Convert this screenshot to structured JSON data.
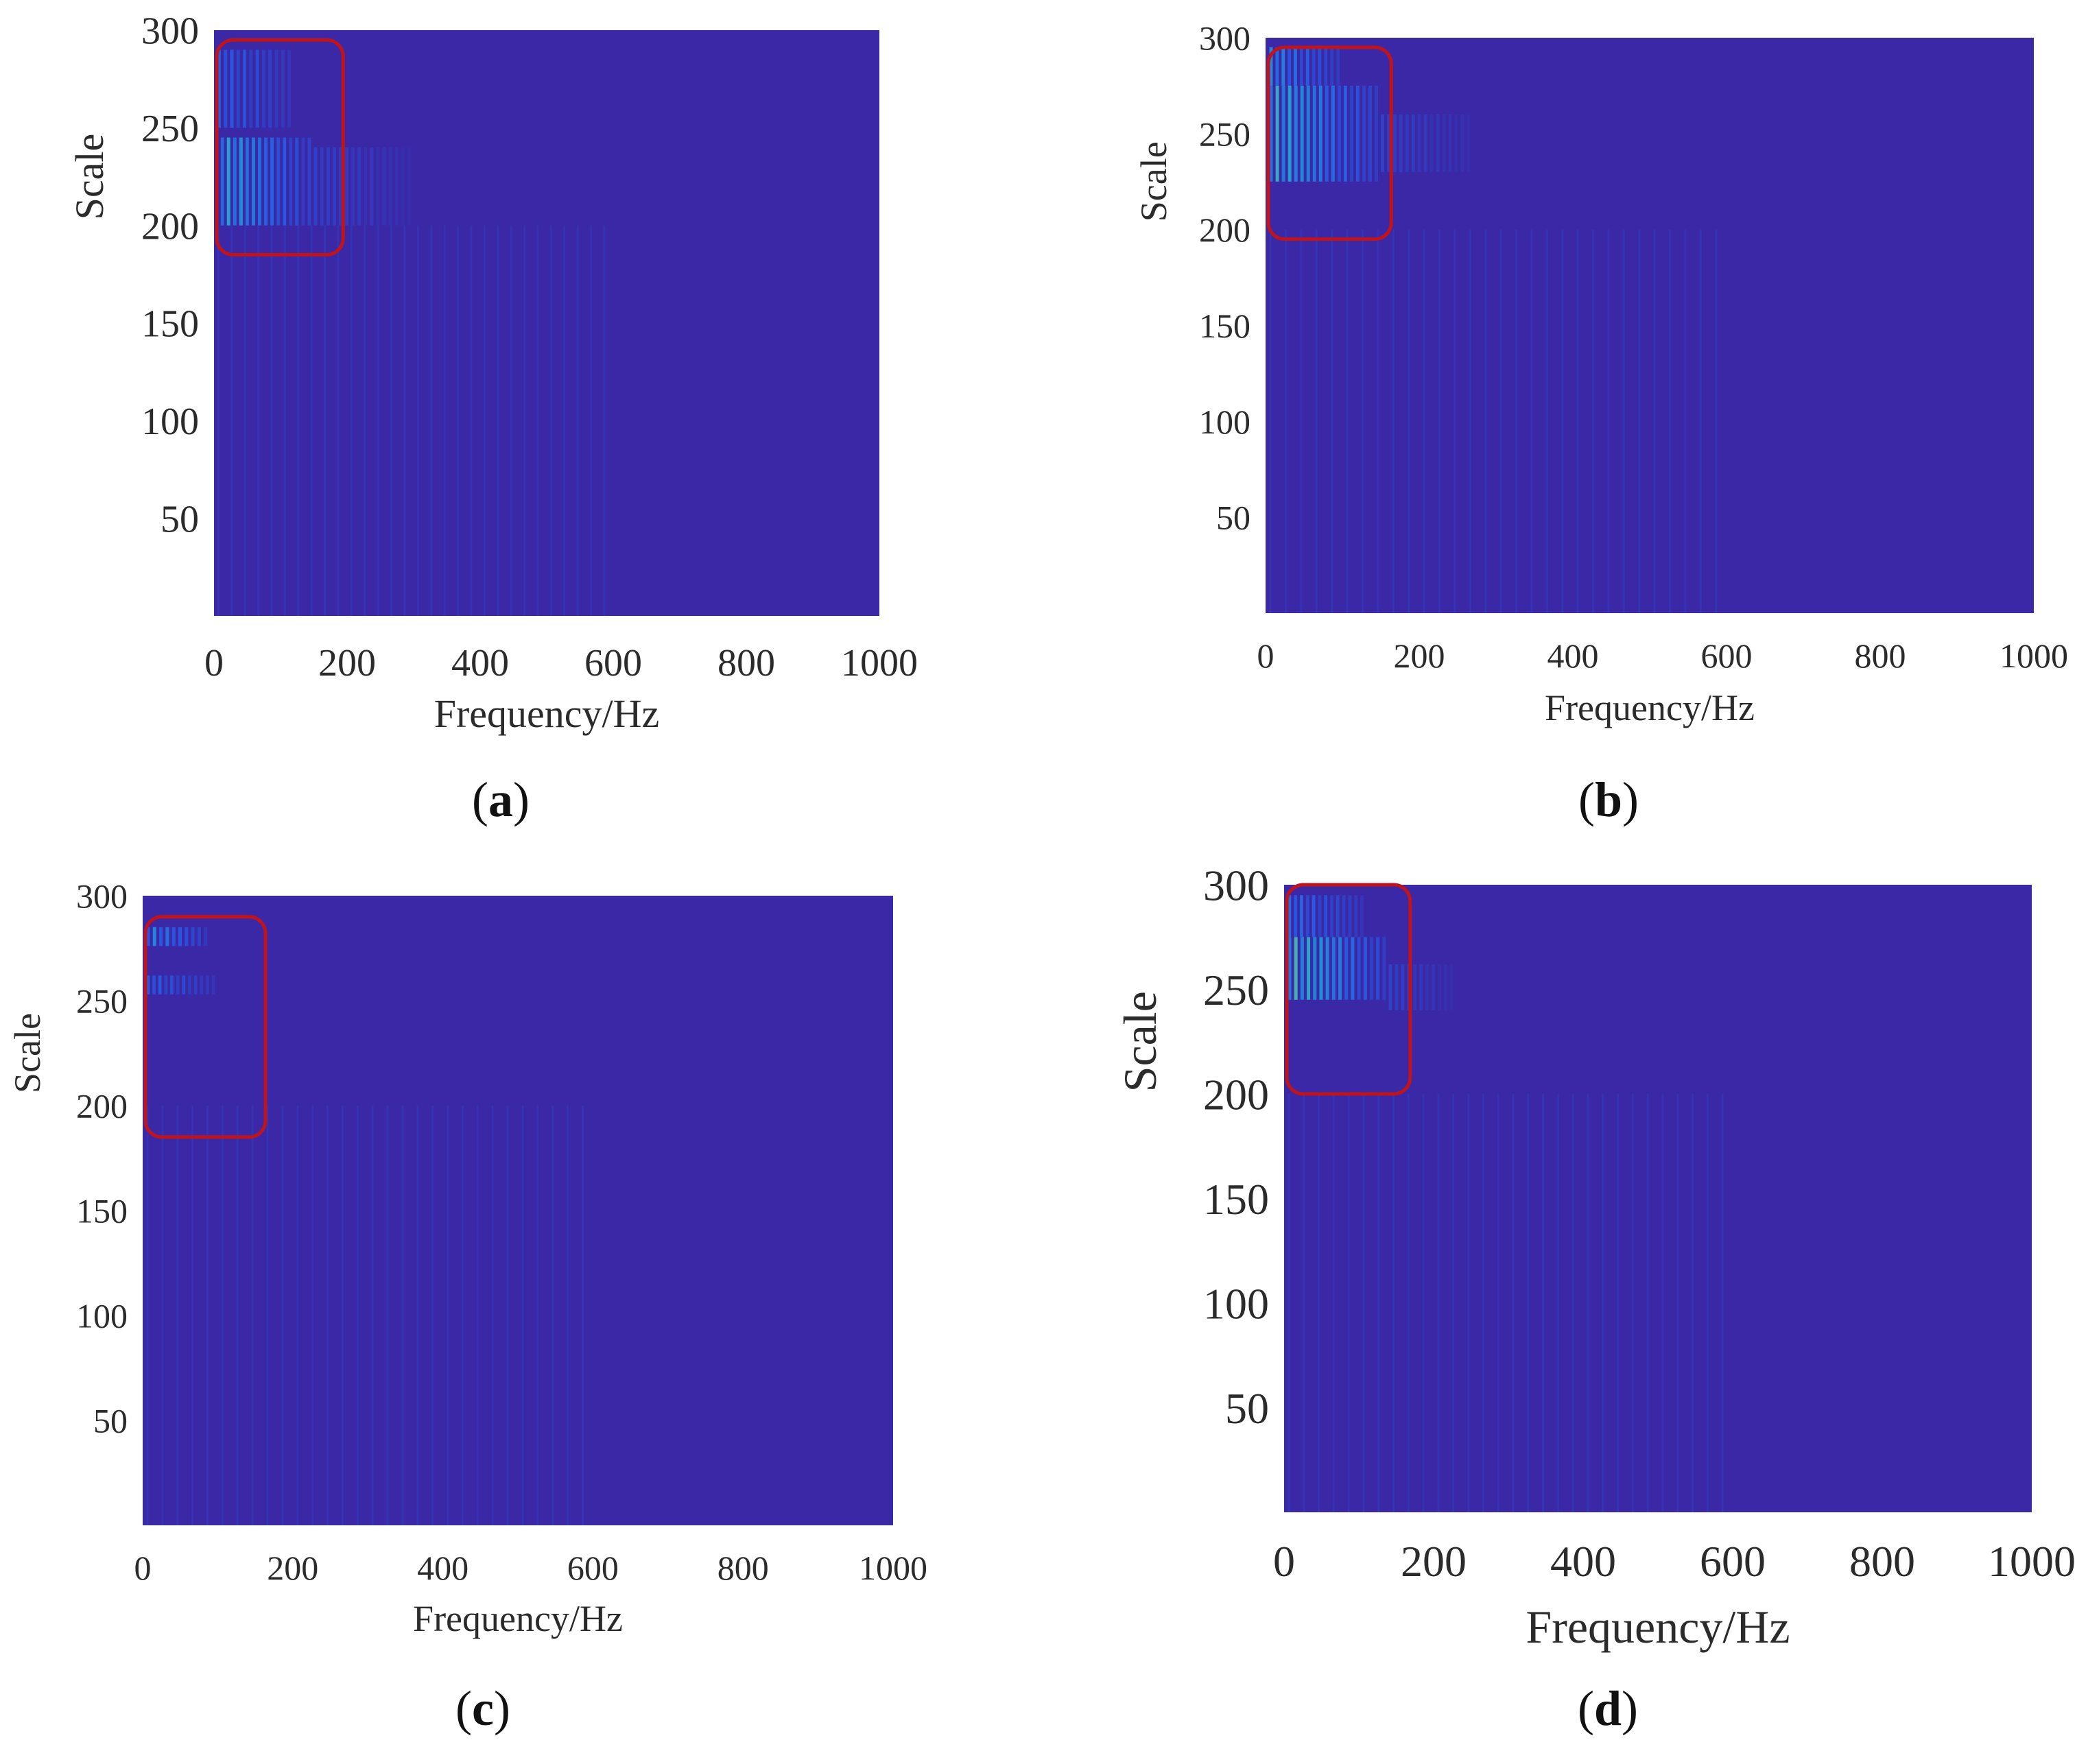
{
  "chart_data": [
    {
      "type": "heatmap",
      "panel_label": "a",
      "xlabel": "Frequency/Hz",
      "ylabel": "Scale",
      "x_ticks": [
        "0",
        "200",
        "400",
        "600",
        "800",
        "1000"
      ],
      "y_ticks": [
        "50",
        "100",
        "150",
        "200",
        "250",
        "300"
      ],
      "xlim": [
        0,
        1000
      ],
      "ylim": [
        0,
        300
      ],
      "background_color": "#3A28A6",
      "highlight_box": {
        "x": [
          0,
          190
        ],
        "y": [
          185,
          295
        ],
        "color": "#C0141C"
      },
      "hotspots": [
        {
          "x": [
            10,
            150
          ],
          "y": [
            200,
            245
          ],
          "level": 0.55
        },
        {
          "x": [
            5,
            120
          ],
          "y": [
            250,
            290
          ],
          "level": 0.3
        },
        {
          "x": [
            150,
            300
          ],
          "y": [
            200,
            240
          ],
          "level": 0.15
        }
      ]
    },
    {
      "type": "heatmap",
      "panel_label": "b",
      "xlabel": "Frequency/Hz",
      "ylabel": "Scale",
      "x_ticks": [
        "0",
        "200",
        "400",
        "600",
        "800",
        "1000"
      ],
      "y_ticks": [
        "50",
        "100",
        "150",
        "200",
        "250",
        "300"
      ],
      "xlim": [
        0,
        1000
      ],
      "ylim": [
        0,
        300
      ],
      "background_color": "#3A28A6",
      "highlight_box": {
        "x": [
          0,
          160
        ],
        "y": [
          195,
          295
        ],
        "color": "#C0141C"
      },
      "hotspots": [
        {
          "x": [
            5,
            150
          ],
          "y": [
            225,
            275
          ],
          "level": 0.6
        },
        {
          "x": [
            5,
            100
          ],
          "y": [
            275,
            295
          ],
          "level": 0.45
        },
        {
          "x": [
            150,
            270
          ],
          "y": [
            230,
            260
          ],
          "level": 0.15
        }
      ]
    },
    {
      "type": "heatmap",
      "panel_label": "c",
      "xlabel": "Frequency/Hz",
      "ylabel": "Scale",
      "x_ticks": [
        "0",
        "200",
        "400",
        "600",
        "800",
        "1000"
      ],
      "y_ticks": [
        "50",
        "100",
        "150",
        "200",
        "250",
        "300"
      ],
      "xlim": [
        0,
        1000
      ],
      "ylim": [
        0,
        300
      ],
      "background_color": "#3A28A6",
      "highlight_box": {
        "x": [
          0,
          160
        ],
        "y": [
          185,
          290
        ],
        "color": "#C0141C"
      },
      "hotspots": [
        {
          "x": [
            5,
            90
          ],
          "y": [
            276,
            285
          ],
          "level": 0.45
        },
        {
          "x": [
            5,
            100
          ],
          "y": [
            253,
            262
          ],
          "level": 0.3
        }
      ]
    },
    {
      "type": "heatmap",
      "panel_label": "d",
      "xlabel": "Frequency/Hz",
      "ylabel": "Scale",
      "x_ticks": [
        "0",
        "200",
        "400",
        "600",
        "800",
        "1000"
      ],
      "y_ticks": [
        "50",
        "100",
        "150",
        "200",
        "250",
        "300"
      ],
      "xlim": [
        0,
        1000
      ],
      "ylim": [
        0,
        300
      ],
      "background_color": "#3A28A6",
      "highlight_box": {
        "x": [
          0,
          165
        ],
        "y": [
          200,
          300
        ],
        "color": "#C0141C"
      },
      "hotspots": [
        {
          "x": [
            5,
            140
          ],
          "y": [
            245,
            275
          ],
          "level": 0.65
        },
        {
          "x": [
            5,
            110
          ],
          "y": [
            275,
            295
          ],
          "level": 0.35
        },
        {
          "x": [
            140,
            230
          ],
          "y": [
            240,
            262
          ],
          "level": 0.15
        }
      ]
    }
  ]
}
